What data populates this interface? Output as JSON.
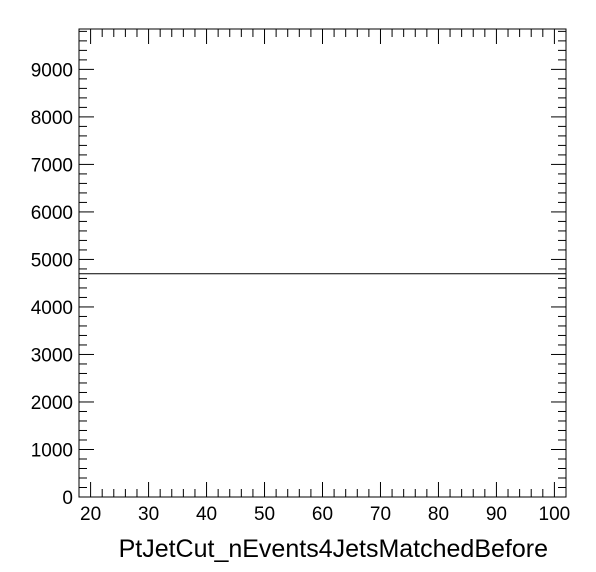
{
  "chart_data": {
    "type": "line",
    "title": "",
    "xlabel": "PtJetCut_nEvents4JetsMatchedBefore",
    "ylabel": "",
    "xlim": [
      18,
      102
    ],
    "ylim": [
      0,
      9850
    ],
    "x_ticks": [
      20,
      30,
      40,
      50,
      60,
      70,
      80,
      90,
      100
    ],
    "x_tick_labels": [
      "20",
      "30",
      "40",
      "50",
      "60",
      "70",
      "80",
      "90",
      "100"
    ],
    "y_ticks": [
      0,
      1000,
      2000,
      3000,
      4000,
      5000,
      6000,
      7000,
      8000,
      9000
    ],
    "y_tick_labels": [
      "0",
      "1000",
      "2000",
      "3000",
      "4000",
      "5000",
      "6000",
      "7000",
      "8000",
      "9000"
    ],
    "grid": false,
    "legend": "none",
    "series": [
      {
        "x": [
          18,
          102
        ],
        "y": [
          4700,
          4700
        ],
        "color": "#000000"
      }
    ]
  }
}
